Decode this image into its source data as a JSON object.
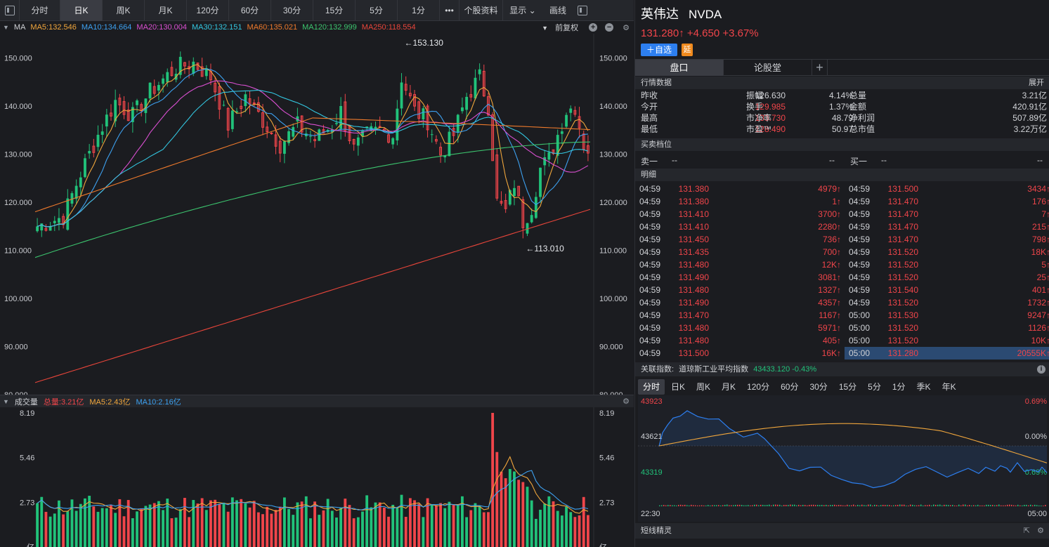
{
  "toolbar": {
    "tabs": [
      "分时",
      "日K",
      "周K",
      "月K",
      "120分",
      "60分",
      "30分",
      "15分",
      "5分",
      "1分"
    ],
    "active_tab": "日K",
    "more": "•••",
    "profile": "个股资料",
    "display": "显示",
    "draw": "画线"
  },
  "ma_legend": {
    "label": "MA",
    "items": [
      {
        "text": "MA5:132.546",
        "color": "#f0a63c"
      },
      {
        "text": "MA10:134.664",
        "color": "#3da1f0"
      },
      {
        "text": "MA20:130.004",
        "color": "#d94fd0"
      },
      {
        "text": "MA30:132.151",
        "color": "#33c6e0"
      },
      {
        "text": "MA60:135.021",
        "color": "#ee7a2c"
      },
      {
        "text": "MA120:132.999",
        "color": "#3cc46e"
      },
      {
        "text": "MA250:118.554",
        "color": "#e8453a"
      }
    ],
    "adjust": "前复权"
  },
  "price_axis": [
    "150.000",
    "140.000",
    "130.000",
    "120.000",
    "110.000",
    "100.000",
    "90.000",
    "80.000"
  ],
  "annotations": {
    "high": "153.130",
    "low": "113.010"
  },
  "volume": {
    "title": "成交量",
    "items": [
      {
        "text": "总量:3.21亿",
        "color": "#f0454a"
      },
      {
        "text": "MA5:2.43亿",
        "color": "#f0a63c"
      },
      {
        "text": "MA10:2.16亿",
        "color": "#3da1f0"
      }
    ],
    "axis": [
      "8.19",
      "5.46",
      "2.73"
    ],
    "unit": "亿"
  },
  "chart_data": {
    "type": "candlestick",
    "ylim": [
      80,
      155
    ],
    "high_label": 153.13,
    "low_label": 113.01,
    "volume_ylim_yi": [
      0,
      8.19
    ],
    "note_series": [
      "MA5",
      "MA10",
      "MA20",
      "MA30",
      "MA60",
      "MA120",
      "MA250"
    ]
  },
  "stock": {
    "name": "英伟达",
    "code": "NVDA",
    "price_line": "131.280↑ +4.650 +3.67%",
    "add_btn": "＋自选",
    "delay_badge": "延"
  },
  "right_tabs": [
    "盘口",
    "论股堂"
  ],
  "sections": {
    "quote": "行情数据",
    "expand": "展开",
    "orderbook": "买卖档位",
    "ticks": "明细"
  },
  "quote_rows": [
    [
      [
        "昨收",
        "126.630",
        ""
      ],
      [
        "振幅",
        "4.14%",
        ""
      ],
      [
        "总量",
        "3.21亿",
        ""
      ]
    ],
    [
      [
        "今开",
        "129.985",
        "red"
      ],
      [
        "换手",
        "1.37%",
        ""
      ],
      [
        "金额",
        "420.91亿",
        ""
      ]
    ],
    [
      [
        "最高",
        "133.730",
        "red"
      ],
      [
        "市净率",
        "48.79",
        ""
      ],
      [
        "净利润",
        "507.89亿",
        ""
      ]
    ],
    [
      [
        "最低",
        "128.490",
        "red"
      ],
      [
        "市盈™",
        "50.97",
        ""
      ],
      [
        "总市值",
        "3.22万亿",
        ""
      ]
    ]
  ],
  "orderbook": {
    "sell_label": "卖一",
    "sell_price": "--",
    "sell_vol": "--",
    "buy_label": "买一",
    "buy_price": "--",
    "buy_vol": "--"
  },
  "ticks_left": [
    [
      "04:59",
      "131.380",
      "4979↑"
    ],
    [
      "04:59",
      "131.380",
      "1↑"
    ],
    [
      "04:59",
      "131.410",
      "3700↑"
    ],
    [
      "04:59",
      "131.410",
      "2280↑"
    ],
    [
      "04:59",
      "131.450",
      "736↑"
    ],
    [
      "04:59",
      "131.435",
      "700↑"
    ],
    [
      "04:59",
      "131.480",
      "12K↑"
    ],
    [
      "04:59",
      "131.490",
      "3081↑"
    ],
    [
      "04:59",
      "131.480",
      "1327↑"
    ],
    [
      "04:59",
      "131.490",
      "4357↑"
    ],
    [
      "04:59",
      "131.470",
      "1167↑"
    ],
    [
      "04:59",
      "131.480",
      "5971↑"
    ],
    [
      "04:59",
      "131.480",
      "405↑"
    ],
    [
      "04:59",
      "131.500",
      "16K↑"
    ]
  ],
  "ticks_right": [
    [
      "04:59",
      "131.500",
      "3434↑"
    ],
    [
      "04:59",
      "131.470",
      "176↑"
    ],
    [
      "04:59",
      "131.470",
      "7↑"
    ],
    [
      "04:59",
      "131.470",
      "215↑"
    ],
    [
      "04:59",
      "131.470",
      "798↑"
    ],
    [
      "04:59",
      "131.520",
      "18K↑"
    ],
    [
      "04:59",
      "131.520",
      "5↑"
    ],
    [
      "04:59",
      "131.520",
      "25↑"
    ],
    [
      "04:59",
      "131.540",
      "401↑"
    ],
    [
      "04:59",
      "131.520",
      "1732↑"
    ],
    [
      "05:00",
      "131.530",
      "9247↑"
    ],
    [
      "05:00",
      "131.520",
      "1126↑"
    ],
    [
      "05:00",
      "131.520",
      "10K↑"
    ],
    [
      "05:00",
      "131.280",
      "20555K↑"
    ]
  ],
  "index": {
    "label": "关联指数:",
    "name": "道琼斯工业平均指数",
    "value": "43433.120 -0.43%"
  },
  "period_tabs": [
    "分时",
    "日K",
    "周K",
    "月K",
    "120分",
    "60分",
    "30分",
    "15分",
    "5分",
    "1分",
    "季K",
    "年K"
  ],
  "mini_chart": {
    "top": "43923",
    "mid": "43621",
    "bot": "43319",
    "pct_top": "0.69%",
    "pct_mid": "0.00%",
    "pct_bot": "0.69%",
    "t_start": "22:30",
    "t_end": "05:00"
  },
  "footer": {
    "title": "短线精灵"
  }
}
